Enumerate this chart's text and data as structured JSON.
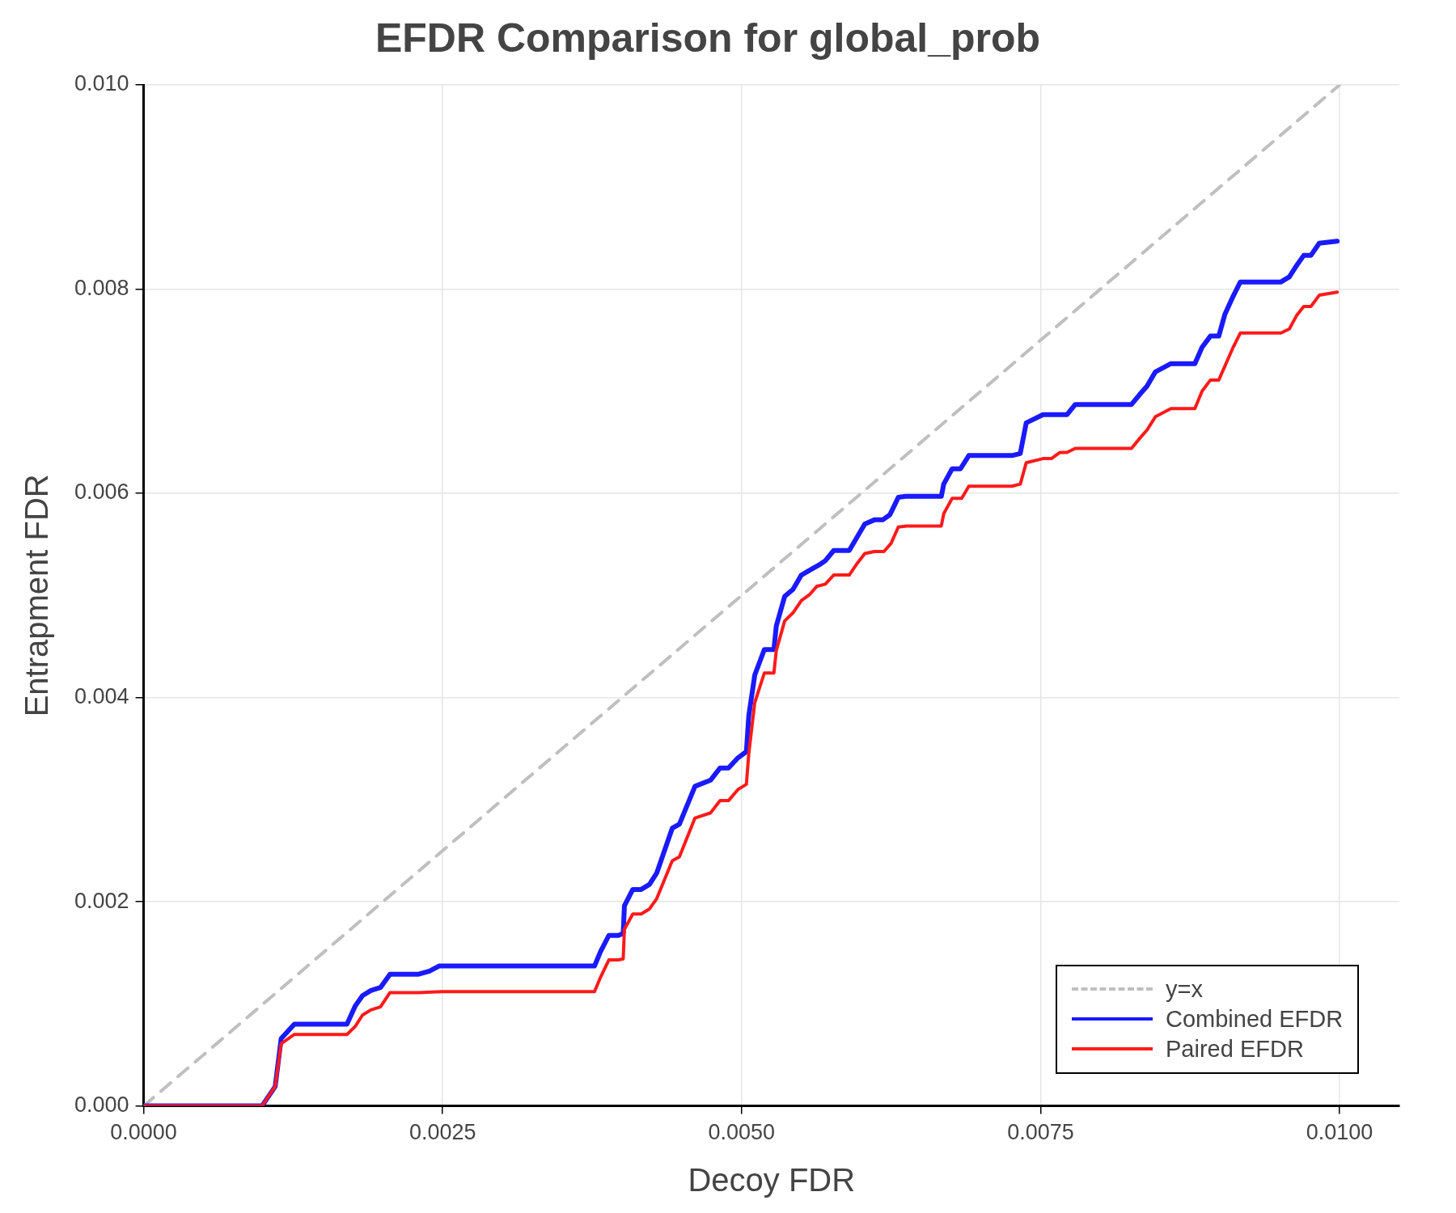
{
  "chart_data": {
    "type": "line",
    "title": "EFDR Comparison for global_prob",
    "xlabel": "Decoy FDR",
    "ylabel": "Entrapment FDR",
    "xlim": [
      0,
      0.0105
    ],
    "ylim": [
      0,
      0.01
    ],
    "xticks": [
      {
        "value": 0,
        "label": "0.0000"
      },
      {
        "value": 0.0025,
        "label": "0.0025"
      },
      {
        "value": 0.005,
        "label": "0.0050"
      },
      {
        "value": 0.0075,
        "label": "0.0075"
      },
      {
        "value": 0.01,
        "label": "0.0100"
      }
    ],
    "yticks": [
      {
        "value": 0,
        "label": "0.000"
      },
      {
        "value": 0.002,
        "label": "0.002"
      },
      {
        "value": 0.004,
        "label": "0.004"
      },
      {
        "value": 0.006,
        "label": "0.006"
      },
      {
        "value": 0.008,
        "label": "0.008"
      },
      {
        "value": 0.01,
        "label": "0.010"
      }
    ],
    "grid": true,
    "legend": "bottom right",
    "marker": "none",
    "series": [
      {
        "name": "y=x",
        "color": "#bfbfbf",
        "line_style": "dashed",
        "x": [
          0,
          0.01
        ],
        "values": [
          0,
          0.01
        ]
      },
      {
        "name": "Combined EFDR",
        "color": "#1a1aff",
        "x": [
          0,
          0.00099,
          0.0011,
          0.00115,
          0.00126,
          0.0017,
          0.00177,
          0.00183,
          0.0019,
          0.00198,
          0.00206,
          0.0023,
          0.00239,
          0.00247,
          0.00377,
          0.00382,
          0.00389,
          0.00397,
          0.00401,
          0.00402,
          0.00409,
          0.00416,
          0.00423,
          0.00429,
          0.00442,
          0.00448,
          0.00461,
          0.00474,
          0.00482,
          0.00489,
          0.00497,
          0.00504,
          0.00506,
          0.00511,
          0.00519,
          0.00527,
          0.00529,
          0.00536,
          0.00543,
          0.0055,
          0.00559,
          0.00565,
          0.0057,
          0.00577,
          0.0059,
          0.00603,
          0.00611,
          0.00618,
          0.00624,
          0.00631,
          0.00637,
          0.00667,
          0.00669,
          0.00676,
          0.00683,
          0.0069,
          0.00726,
          0.00733,
          0.00738,
          0.00752,
          0.00772,
          0.00779,
          0.00826,
          0.00833,
          0.00839,
          0.00846,
          0.00859,
          0.00879,
          0.00885,
          0.00892,
          0.00899,
          0.00904,
          0.00911,
          0.00917,
          0.00951,
          0.00958,
          0.00964,
          0.0097,
          0.00976,
          0.00983,
          0.00998
        ],
        "values": [
          0,
          0,
          0.00019,
          0.00066,
          0.0008,
          0.0008,
          0.00098,
          0.00108,
          0.00113,
          0.00116,
          0.00129,
          0.00129,
          0.00132,
          0.00137,
          0.00137,
          0.00151,
          0.00167,
          0.00167,
          0.00169,
          0.00196,
          0.00212,
          0.00212,
          0.00217,
          0.00228,
          0.00272,
          0.00276,
          0.00313,
          0.00319,
          0.00331,
          0.00331,
          0.00341,
          0.00347,
          0.00382,
          0.00422,
          0.00447,
          0.00447,
          0.0047,
          0.00499,
          0.00506,
          0.0052,
          0.00526,
          0.0053,
          0.00534,
          0.00544,
          0.00544,
          0.0057,
          0.00574,
          0.00574,
          0.00579,
          0.00596,
          0.00597,
          0.00597,
          0.00609,
          0.00624,
          0.00624,
          0.00637,
          0.00637,
          0.00639,
          0.00669,
          0.00677,
          0.00677,
          0.00687,
          0.00687,
          0.00697,
          0.00705,
          0.00719,
          0.00727,
          0.00727,
          0.00743,
          0.00754,
          0.00754,
          0.00775,
          0.00793,
          0.00807,
          0.00807,
          0.00812,
          0.00823,
          0.00833,
          0.00833,
          0.00845,
          0.00847
        ]
      },
      {
        "name": "Paired EFDR",
        "color": "#ff1a1a",
        "x": [
          0,
          0.00099,
          0.0011,
          0.00115,
          0.00126,
          0.0017,
          0.00177,
          0.00183,
          0.0019,
          0.00198,
          0.00206,
          0.0023,
          0.00249,
          0.00377,
          0.00382,
          0.00389,
          0.00397,
          0.00401,
          0.00402,
          0.00409,
          0.00416,
          0.00423,
          0.00429,
          0.00442,
          0.00448,
          0.00461,
          0.00474,
          0.00482,
          0.00489,
          0.00497,
          0.00504,
          0.00506,
          0.00511,
          0.00519,
          0.00527,
          0.00529,
          0.00536,
          0.00543,
          0.0055,
          0.00557,
          0.00563,
          0.0057,
          0.00577,
          0.0059,
          0.00597,
          0.00603,
          0.00611,
          0.00619,
          0.00625,
          0.00631,
          0.00638,
          0.00667,
          0.00669,
          0.00676,
          0.00684,
          0.0069,
          0.00726,
          0.00733,
          0.00738,
          0.00752,
          0.00759,
          0.00766,
          0.00772,
          0.00779,
          0.00826,
          0.00833,
          0.00839,
          0.00846,
          0.00859,
          0.00879,
          0.00885,
          0.00892,
          0.00899,
          0.00911,
          0.00917,
          0.00951,
          0.00958,
          0.00964,
          0.0097,
          0.00976,
          0.00983,
          0.00998
        ],
        "values": [
          0,
          0,
          0.00019,
          0.00061,
          0.0007,
          0.0007,
          0.00078,
          0.00089,
          0.00094,
          0.00097,
          0.00111,
          0.00111,
          0.00112,
          0.00112,
          0.00126,
          0.00143,
          0.00143,
          0.00144,
          0.00173,
          0.00188,
          0.00188,
          0.00193,
          0.00203,
          0.0024,
          0.00244,
          0.00282,
          0.00287,
          0.00299,
          0.00299,
          0.0031,
          0.00315,
          0.00345,
          0.00395,
          0.00424,
          0.00424,
          0.00446,
          0.00475,
          0.00483,
          0.00495,
          0.00501,
          0.00509,
          0.00511,
          0.0052,
          0.0052,
          0.00532,
          0.00541,
          0.00543,
          0.00543,
          0.00551,
          0.00567,
          0.00568,
          0.00568,
          0.0058,
          0.00595,
          0.00595,
          0.00607,
          0.00607,
          0.00609,
          0.0063,
          0.00634,
          0.00634,
          0.0064,
          0.0064,
          0.00644,
          0.00644,
          0.00654,
          0.00662,
          0.00675,
          0.00683,
          0.00683,
          0.007,
          0.00711,
          0.00711,
          0.00743,
          0.00757,
          0.00757,
          0.00761,
          0.00774,
          0.00783,
          0.00783,
          0.00794,
          0.00797
        ]
      }
    ]
  }
}
